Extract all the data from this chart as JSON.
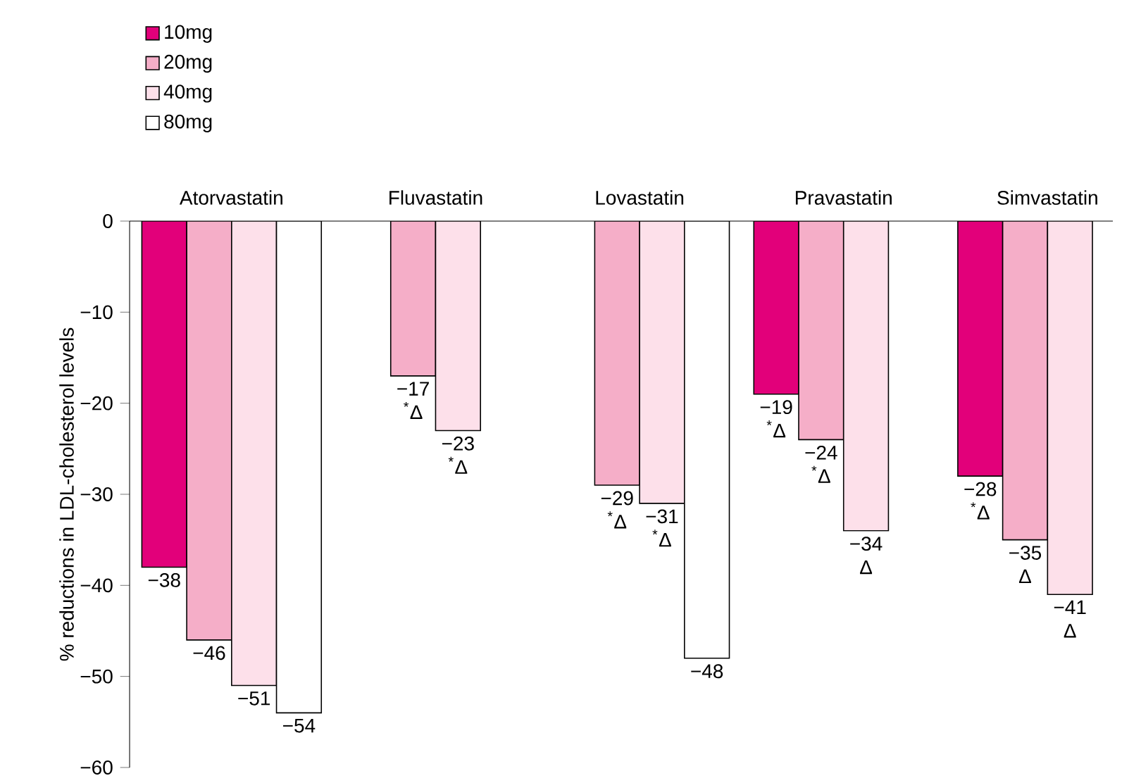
{
  "chart_data": {
    "type": "bar",
    "categories": [
      "Atorvastatin",
      "Fluvastatin",
      "Lovastatin",
      "Pravastatin",
      "Simvastatin"
    ],
    "ylabel": "% reductions in LDL-cholesterol levels",
    "ylim": [
      -60,
      0
    ],
    "yticks": [
      0,
      {
        "value": -10,
        "label": "−10"
      },
      {
        "value": -20,
        "label": "−20"
      },
      {
        "value": -30,
        "label": "−30"
      },
      {
        "value": -40,
        "label": "−40"
      },
      {
        "value": -50,
        "label": "−50"
      },
      {
        "value": -60,
        "label": "−60"
      }
    ],
    "legend": "top left",
    "series": [
      {
        "name": "10mg",
        "color": "#e2007a",
        "values": [
          -38,
          null,
          null,
          -19,
          -28
        ],
        "value_labels": [
          "−38",
          null,
          null,
          "−19 $^{*}$Δ",
          "−28 $^{*}$Δ"
        ]
      },
      {
        "name": "20mg",
        "color": "#f5aec8",
        "values": [
          -46,
          -17,
          -29,
          -24,
          -35
        ],
        "value_labels": [
          "−46",
          "−17 $^{*}$Δ",
          "−29 $^{*}$Δ",
          "−24 $^{*}$Δ",
          "−35 Δ"
        ]
      },
      {
        "name": "40mg",
        "color": "#fde0ea",
        "values": [
          -51,
          -23,
          -31,
          -34,
          -41
        ],
        "value_labels": [
          "−51",
          "−23 $^{*}$Δ",
          "−31 $^{*}$Δ",
          "−34 Δ",
          "−41 Δ"
        ]
      },
      {
        "name": "80mg",
        "color": "#ffffff",
        "values": [
          -54,
          null,
          -48,
          null,
          null
        ],
        "value_labels": [
          "−54",
          null,
          "−48",
          null,
          null
        ]
      }
    ]
  }
}
